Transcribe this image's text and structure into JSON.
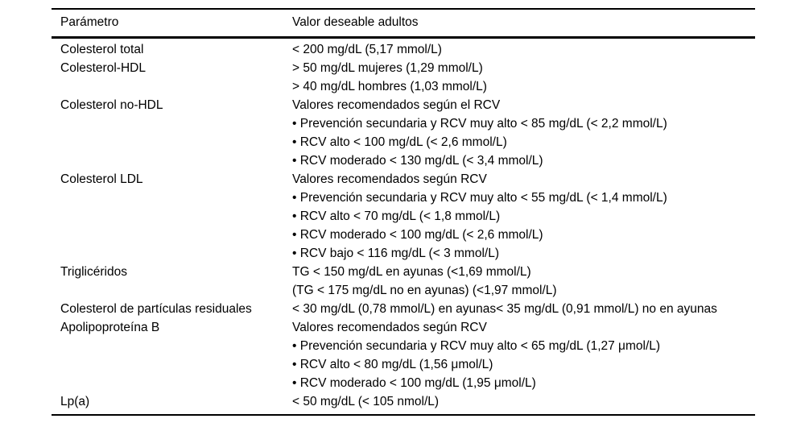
{
  "table": {
    "columns": [
      "Parámetro",
      "Valor deseable adultos"
    ],
    "rows": [
      {
        "param": "Colesterol total",
        "value": "< 200 mg/dL (5,17 mmol/L)"
      },
      {
        "param": "Colesterol-HDL",
        "value": "> 50 mg/dL mujeres (1,29 mmol/L)"
      },
      {
        "param": "",
        "value": "> 40 mg/dL hombres (1,03 mmol/L)"
      },
      {
        "param": "Colesterol no-HDL",
        "value": "Valores recomendados según el RCV"
      },
      {
        "param": "",
        "value": "• Prevención secundaria y RCV muy alto < 85 mg/dL (< 2,2 mmol/L)"
      },
      {
        "param": "",
        "value": "• RCV alto < 100 mg/dL (< 2,6 mmol/L)"
      },
      {
        "param": "",
        "value": "• RCV moderado < 130 mg/dL (< 3,4 mmol/L)"
      },
      {
        "param": "Colesterol LDL",
        "value": "Valores recomendados según RCV"
      },
      {
        "param": "",
        "value": "• Prevención secundaria y RCV muy alto < 55 mg/dL (< 1,4 mmol/L)"
      },
      {
        "param": "",
        "value": "• RCV alto < 70 mg/dL (< 1,8 mmol/L)"
      },
      {
        "param": "",
        "value": "• RCV moderado < 100 mg/dL (< 2,6 mmol/L)"
      },
      {
        "param": "",
        "value": "• RCV bajo < 116 mg/dL (< 3 mmol/L)"
      },
      {
        "param": "Triglicéridos",
        "value": "TG < 150 mg/dL en ayunas (<1,69 mmol/L)"
      },
      {
        "param": "",
        "value": "(TG < 175 mg/dL no en ayunas) (<1,97 mmol/L)"
      },
      {
        "param": "Colesterol de partículas residuales",
        "value": "< 30 mg/dL (0,78 mmol/L) en ayunas< 35 mg/dL (0,91 mmol/L) no en ayunas"
      },
      {
        "param": "Apolipoproteína B",
        "value": "Valores recomendados según RCV"
      },
      {
        "param": "",
        "value": "• Prevención secundaria y RCV muy alto < 65 mg/dL (1,27 μmol/L)"
      },
      {
        "param": "",
        "value": "• RCV alto < 80 mg/dL (1,56 μmol/L)"
      },
      {
        "param": "",
        "value": "• RCV moderado < 100 mg/dL (1,95 μmol/L)"
      },
      {
        "param": "Lp(a)",
        "value": "< 50 mg/dL (< 105 nmol/L)"
      }
    ]
  }
}
